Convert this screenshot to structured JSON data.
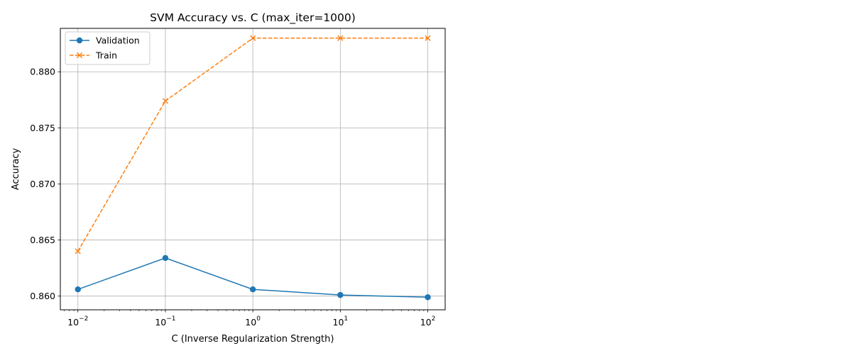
{
  "chart_data": {
    "type": "line",
    "title": "SVM Accuracy vs. C (max_iter=1000)",
    "xlabel": "C (Inverse Regularization Strength)",
    "ylabel": "Accuracy",
    "xscale": "log",
    "x": [
      0.01,
      0.1,
      1,
      10,
      100
    ],
    "xticks": [
      {
        "value": 0.01,
        "base": "10",
        "exp": "−2"
      },
      {
        "value": 0.1,
        "base": "10",
        "exp": "−1"
      },
      {
        "value": 1,
        "base": "10",
        "exp": "0"
      },
      {
        "value": 10,
        "base": "10",
        "exp": "1"
      },
      {
        "value": 100,
        "base": "10",
        "exp": "2"
      }
    ],
    "yticks": [
      0.86,
      0.865,
      0.87,
      0.875,
      0.88
    ],
    "ytick_labels": [
      "0.860",
      "0.865",
      "0.870",
      "0.875",
      "0.880"
    ],
    "xlim": [
      0.0063,
      158
    ],
    "ylim": [
      0.85878,
      0.88387
    ],
    "grid": true,
    "legend_position": "upper-left",
    "series": [
      {
        "name": "Validation",
        "values": [
          0.8606,
          0.8634,
          0.8606,
          0.8601,
          0.8599
        ],
        "color": "#1f77b4",
        "marker": "circle",
        "linestyle": "solid"
      },
      {
        "name": "Train",
        "values": [
          0.864,
          0.8774,
          0.883,
          0.883,
          0.883
        ],
        "color": "#ff7f0e",
        "marker": "x",
        "linestyle": "dashed"
      }
    ]
  }
}
